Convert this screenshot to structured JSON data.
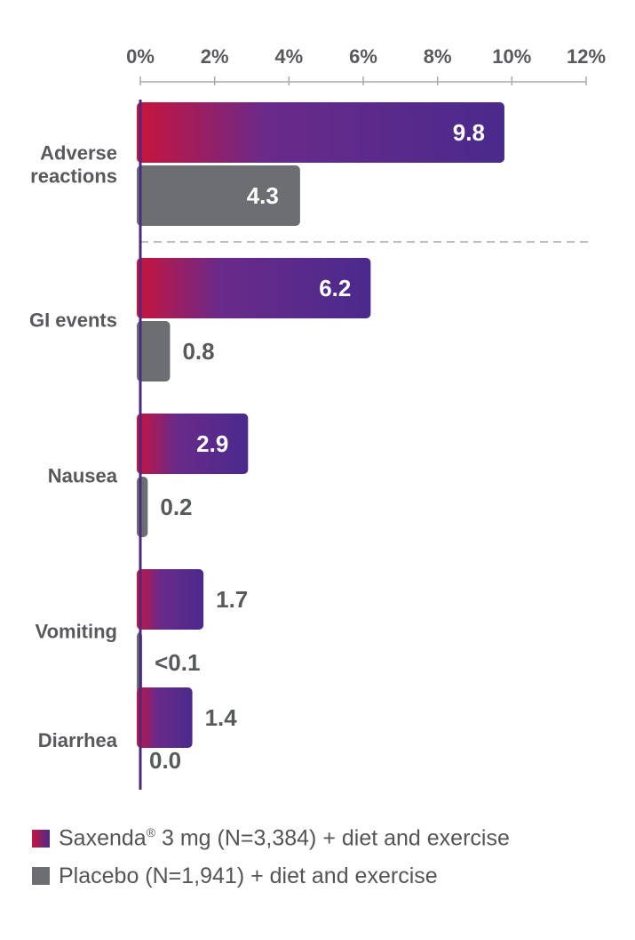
{
  "chart_data": {
    "type": "bar",
    "orientation": "horizontal",
    "categories": [
      "Adverse reactions",
      "GI events",
      "Nausea",
      "Vomiting",
      "Diarrhea"
    ],
    "category_lines": [
      [
        "Adverse",
        "reactions"
      ],
      [
        "GI events"
      ],
      [
        "Nausea"
      ],
      [
        "Vomiting"
      ],
      [
        "Diarrhea"
      ]
    ],
    "series": [
      {
        "name": "Saxenda® 3 mg (N=3,384) + diet and exercise",
        "values": [
          9.8,
          6.2,
          2.9,
          1.7,
          1.4
        ],
        "labels": [
          "9.8",
          "6.2",
          "2.9",
          "1.7",
          "1.4"
        ]
      },
      {
        "name": "Placebo (N=1,941) + diet and exercise",
        "values": [
          4.3,
          0.8,
          0.2,
          0.05,
          0.0
        ],
        "labels": [
          "4.3",
          "0.8",
          "0.2",
          "<0.1",
          "0.0"
        ]
      }
    ],
    "x_ticks": [
      "0%",
      "2%",
      "4%",
      "6%",
      "8%",
      "10%",
      "12%"
    ],
    "xlim": [
      0,
      12
    ],
    "x_axis_position": "top",
    "grid": false,
    "legend_position": "bottom-left"
  },
  "legend": {
    "saxenda": {
      "brand": "Saxenda",
      "mark": "®",
      "rest": " 3 mg (N=3,384) + diet and exercise"
    },
    "placebo": {
      "label": "Placebo (N=1,941) + diet and exercise"
    }
  },
  "colors": {
    "saxenda_start": "#c8143c",
    "saxenda_mid": "#6a2a8a",
    "saxenda_end": "#4a2a8c",
    "placebo": "#6d6e71",
    "axis": "#4a2a80",
    "text": "#58595b",
    "divider": "#a7a9ac"
  }
}
